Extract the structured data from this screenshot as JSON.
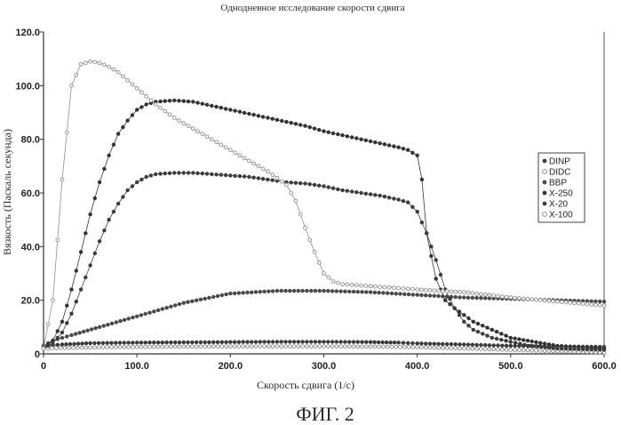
{
  "chart_data": {
    "type": "scatter",
    "title": "Однодневное  исследование скорости сдвига",
    "xlabel": "Скорость сдвига (1/с)",
    "ylabel": "Вязкость (Паскаль секунда)",
    "xlim": [
      0,
      600
    ],
    "ylim": [
      0,
      120
    ],
    "x_ticks": [
      "0",
      "100.0",
      "200.0",
      "300.0",
      "400.0",
      "500.0",
      "600.0"
    ],
    "y_ticks": [
      "0",
      "20.0",
      "40.0",
      "60.0",
      "80.0",
      "100.0",
      "120.0"
    ],
    "legend_position": "right",
    "caption": "ФИГ. 2",
    "series": [
      {
        "name": "DINP",
        "marker": "filled",
        "color": "#3a3a3a",
        "x": [
          0,
          20,
          50,
          100,
          150,
          200,
          250,
          300,
          350,
          380,
          400,
          450,
          500,
          550,
          600
        ],
        "y": [
          3,
          3.5,
          4,
          4.2,
          4.3,
          4.4,
          4.5,
          4.5,
          4.4,
          4.2,
          3.9,
          3.5,
          3,
          2.8,
          2.6
        ]
      },
      {
        "name": "DIDC",
        "marker": "open",
        "color": "#8a8a8a",
        "x": [
          0,
          50,
          100,
          150,
          200,
          250,
          300,
          350,
          400,
          450,
          500,
          550,
          600
        ],
        "y": [
          2,
          2.4,
          2.6,
          2.7,
          2.8,
          2.8,
          2.8,
          2.7,
          2.5,
          2,
          1.5,
          1,
          0.5
        ]
      },
      {
        "name": "BBP",
        "marker": "filled",
        "color": "#4a4a4a",
        "x": [
          0,
          10,
          30,
          60,
          100,
          150,
          200,
          250,
          300,
          350,
          400,
          450,
          500,
          550,
          600
        ],
        "y": [
          3,
          5,
          7,
          10,
          14,
          19,
          22.5,
          23.5,
          23.5,
          23,
          22,
          21,
          20.5,
          20,
          19.5
        ]
      },
      {
        "name": "X-250",
        "marker": "filled",
        "color": "#333333",
        "x": [
          0,
          10,
          20,
          30,
          40,
          50,
          60,
          70,
          80,
          90,
          100,
          110,
          120,
          140,
          160,
          180,
          200,
          220,
          240,
          260,
          280,
          300,
          320,
          340,
          360,
          380,
          390,
          400,
          405,
          410,
          420,
          430,
          440,
          460,
          480,
          500,
          550,
          600
        ],
        "y": [
          2,
          5,
          12,
          24,
          38,
          52,
          64,
          74,
          82,
          87,
          91,
          93,
          94,
          94.5,
          94,
          92.5,
          91,
          89.5,
          88,
          86.5,
          85,
          83,
          81.5,
          80,
          78.5,
          77,
          76,
          74,
          65,
          45,
          28,
          20,
          17,
          12,
          9,
          6,
          3,
          2
        ]
      },
      {
        "name": "X-20",
        "marker": "filled",
        "color": "#3c3c3c",
        "x": [
          0,
          10,
          20,
          30,
          40,
          50,
          60,
          70,
          80,
          90,
          100,
          110,
          120,
          140,
          160,
          180,
          200,
          220,
          240,
          260,
          280,
          300,
          320,
          340,
          360,
          380,
          390,
          400,
          410,
          420,
          430,
          440,
          450,
          460,
          480,
          500,
          520,
          550,
          600
        ],
        "y": [
          2,
          4,
          8,
          15,
          24,
          33,
          42,
          50,
          56,
          61,
          64,
          66,
          67,
          67.5,
          67.5,
          67,
          66.5,
          66,
          65,
          64,
          63.5,
          62.5,
          61,
          60,
          59,
          57.5,
          56.5,
          53,
          45,
          35,
          24,
          17,
          12,
          9,
          6,
          4.5,
          3,
          2,
          1.5
        ]
      },
      {
        "name": "X-100",
        "marker": "open",
        "color": "#8f8f8f",
        "x": [
          0,
          10,
          20,
          30,
          40,
          50,
          60,
          70,
          80,
          90,
          100,
          120,
          140,
          160,
          180,
          200,
          220,
          240,
          260,
          270,
          280,
          290,
          300,
          310,
          320,
          340,
          360,
          380,
          400,
          450,
          500,
          550,
          600
        ],
        "y": [
          2,
          20,
          65,
          100,
          108,
          109,
          108.5,
          107,
          105,
          102,
          99,
          93,
          88,
          84,
          80,
          76,
          72,
          68,
          63,
          57,
          47,
          38,
          30,
          27,
          26,
          25.5,
          25,
          24.5,
          24,
          23,
          21,
          19.5,
          18
        ]
      }
    ]
  }
}
